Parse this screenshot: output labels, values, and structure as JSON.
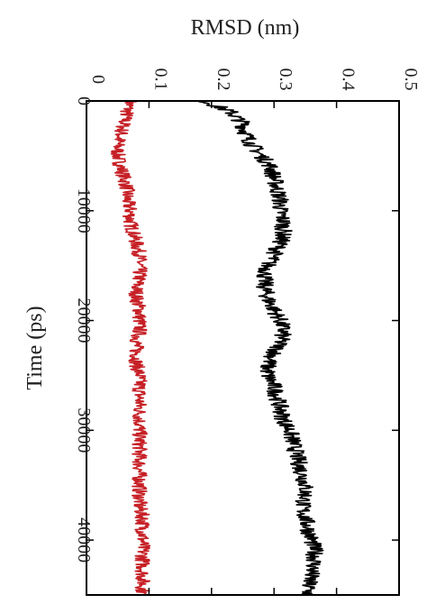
{
  "chart_data": {
    "type": "line",
    "orientation": "rotated",
    "title": "",
    "xlabel": "Time (ps)",
    "ylabel": "RMSD (nm)",
    "xlim": [
      0,
      45000
    ],
    "ylim": [
      0,
      0.5
    ],
    "x_ticks": [
      0,
      10000,
      20000,
      30000,
      40000
    ],
    "x_tick_labels": [
      "0",
      "10000",
      "20000",
      "30000",
      "40000"
    ],
    "y_ticks": [
      0,
      0.1,
      0.2,
      0.3,
      0.4,
      0.5
    ],
    "y_tick_labels": [
      "0",
      "0.1",
      "0.2",
      "0.3",
      "0.4",
      "0.5"
    ],
    "grid": false,
    "legend": "none",
    "colors": {
      "series_red": "#c62026",
      "series_black": "#000000"
    },
    "x": [
      0,
      1000,
      2000,
      3000,
      4000,
      5000,
      6000,
      7000,
      8000,
      9000,
      10000,
      11000,
      12000,
      13000,
      14000,
      15000,
      16000,
      17000,
      18000,
      19000,
      20000,
      21000,
      22000,
      23000,
      24000,
      25000,
      26000,
      27000,
      28000,
      29000,
      30000,
      31000,
      32000,
      33000,
      34000,
      35000,
      36000,
      37000,
      38000,
      39000,
      40000,
      41000,
      42000,
      43000,
      44000,
      45000
    ],
    "series": [
      {
        "color": "#c62026",
        "values": [
          0.07,
          0.065,
          0.06,
          0.055,
          0.05,
          0.05,
          0.055,
          0.06,
          0.065,
          0.065,
          0.07,
          0.07,
          0.075,
          0.08,
          0.085,
          0.085,
          0.085,
          0.08,
          0.08,
          0.085,
          0.085,
          0.085,
          0.08,
          0.08,
          0.08,
          0.085,
          0.085,
          0.085,
          0.085,
          0.085,
          0.085,
          0.085,
          0.085,
          0.085,
          0.085,
          0.085,
          0.085,
          0.085,
          0.09,
          0.09,
          0.09,
          0.09,
          0.09,
          0.09,
          0.09,
          0.09
        ]
      },
      {
        "color": "#000000",
        "values": [
          0.19,
          0.23,
          0.25,
          0.255,
          0.265,
          0.28,
          0.295,
          0.3,
          0.305,
          0.31,
          0.31,
          0.315,
          0.315,
          0.31,
          0.3,
          0.29,
          0.285,
          0.285,
          0.29,
          0.3,
          0.31,
          0.315,
          0.31,
          0.3,
          0.29,
          0.29,
          0.3,
          0.305,
          0.31,
          0.315,
          0.325,
          0.33,
          0.335,
          0.34,
          0.345,
          0.35,
          0.35,
          0.345,
          0.35,
          0.355,
          0.36,
          0.365,
          0.365,
          0.36,
          0.355,
          0.355
        ]
      }
    ]
  }
}
